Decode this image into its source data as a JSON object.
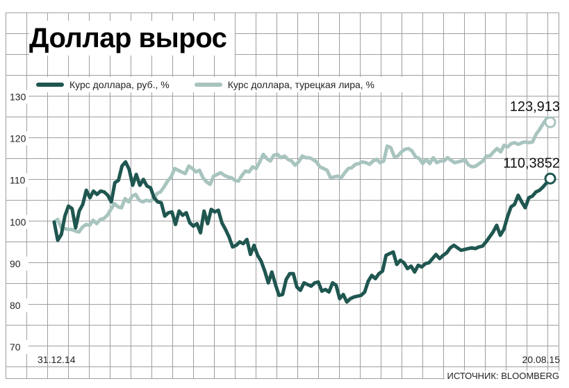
{
  "title": "Доллар вырос",
  "source": "ИСТОЧНИК: BLOOMBERG",
  "colors": {
    "rub": "#1f5650",
    "try": "#a8c4bf",
    "grid": "#9e9e9e",
    "background": "#ffffff"
  },
  "chart_data": {
    "type": "line",
    "title": "Доллар вырос",
    "xlabel": "",
    "ylabel": "",
    "ylim": [
      70,
      130
    ],
    "y_ticks": [
      70,
      80,
      90,
      100,
      110,
      120,
      130
    ],
    "y_tick_labels": [
      "70",
      "80",
      "90",
      "100",
      "110",
      "120",
      "130"
    ],
    "x_tick_labels": [
      "31.12.14",
      "20.08.15"
    ],
    "grid": true,
    "legend_position": "top-left",
    "series": [
      {
        "name": "Курс доллара, руб., %",
        "color": "#1f5650",
        "end_label": "110,3852",
        "values": [
          100,
          95.6,
          97,
          101.4,
          103.8,
          103.2,
          98.6,
          102.6,
          104.2,
          107.6,
          105.8,
          107.4,
          106.6,
          107.4,
          107.2,
          106.4,
          104.8,
          109.4,
          110,
          113.4,
          114.4,
          112.6,
          108.8,
          111.4,
          108.8,
          110.2,
          108.6,
          108.2,
          105.8,
          104.8,
          104.6,
          101.4,
          102.2,
          102.4,
          99.4,
          102.6,
          101.6,
          102.2,
          99.8,
          99,
          99.6,
          97.4,
          102.6,
          99.6,
          103,
          102.4,
          102.8,
          99.8,
          98.2,
          96.4,
          94,
          94.4,
          95.2,
          94.8,
          95.8,
          92.2,
          94.4,
          92,
          90.6,
          88.2,
          85.4,
          88,
          85,
          82.4,
          82.6,
          86.2,
          87.6,
          87.6,
          84.4,
          83.6,
          85.4,
          85,
          84.6,
          85.4,
          85.6,
          83.4,
          83.8,
          83.2,
          85.4,
          84.8,
          81.6,
          82.6,
          80.8,
          81.6,
          82,
          82.2,
          82.4,
          83.2,
          85.8,
          87.2,
          86.4,
          87.6,
          88.2,
          92,
          92.4,
          92.8,
          89.8,
          90.8,
          90.2,
          88.8,
          89.4,
          88,
          89.6,
          89.2,
          90,
          90.2,
          91.2,
          92.2,
          91.2,
          92,
          92.6,
          93.8,
          94.4,
          93.8,
          93.2,
          93.4,
          93.6,
          93.8,
          93.6,
          94,
          94.2,
          95.2,
          96.4,
          97.6,
          99.2,
          96.8,
          98.2,
          101.2,
          103.6,
          104.2,
          106.4,
          104.8,
          103.4,
          105.8,
          106.2,
          107.2,
          107.6,
          108.4,
          109.4,
          110.4
        ]
      },
      {
        "name": "Курс доллара, турецкая лира, %",
        "color": "#a8c4bf",
        "end_label": "123,913",
        "values": [
          100,
          100.6,
          98.6,
          98.4,
          98.2,
          98.2,
          97.8,
          97.6,
          98.8,
          99.4,
          99.2,
          100.4,
          99.6,
          100.6,
          100.8,
          101.6,
          103,
          104.4,
          103.6,
          103.4,
          105.6,
          104.8,
          106.2,
          106.6,
          105.2,
          104.8,
          105.2,
          105,
          105.4,
          106.8,
          107.2,
          108.4,
          109.8,
          110.8,
          112.8,
          112.4,
          112,
          111.6,
          113.4,
          112.8,
          112,
          112.4,
          110.6,
          109.6,
          109,
          111,
          111.4,
          111.8,
          111.2,
          110.8,
          110.6,
          110,
          109.8,
          111.2,
          112.2,
          112,
          113.2,
          112.8,
          114.4,
          116.2,
          115.2,
          114.6,
          116,
          116.2,
          115.4,
          115.8,
          115,
          114.6,
          113.6,
          114.4,
          115.8,
          115.4,
          115.4,
          115,
          114.4,
          113.2,
          112.8,
          112.4,
          110.6,
          110.8,
          111,
          110.6,
          111.8,
          112.8,
          113,
          113.8,
          114,
          114.4,
          114.2,
          113.8,
          114.6,
          115,
          114.2,
          114.6,
          118.2,
          117.8,
          115.6,
          115.8,
          116.8,
          117.4,
          117.6,
          117,
          115.6,
          115.2,
          114,
          115,
          114,
          115.4,
          114.2,
          114.6,
          114.6,
          115.4,
          114.8,
          114.2,
          114.4,
          114.6,
          114.8,
          113.6,
          113.2,
          113.4,
          114,
          114.6,
          115.8,
          115.8,
          116.8,
          117.6,
          116.8,
          118.4,
          118,
          118.8,
          119,
          118.6,
          119,
          119.2,
          119,
          119.2,
          121,
          122.2,
          123.6,
          124.8,
          123.913
        ]
      }
    ]
  }
}
